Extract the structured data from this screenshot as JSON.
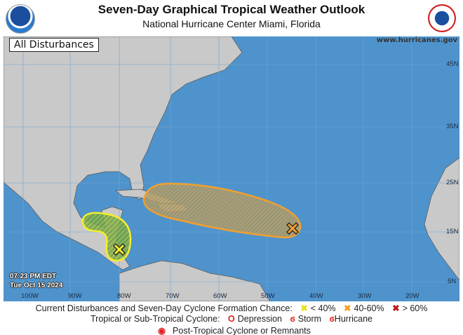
{
  "header": {
    "title": "Seven-Day Graphical Tropical Weather Outlook",
    "subtitle": "National Hurricane Center  Miami, Florida"
  },
  "logos": {
    "left": "noaa-logo",
    "left_text": "NOAA",
    "right": "national-weather-service-logo",
    "right_text": "NATIONAL WEATHER SERVICE"
  },
  "map": {
    "panel_label": "All Disturbances",
    "website": "www.hurricanes.gov",
    "time": "07:23 PM EDT",
    "date": "Tue Oct 15 2024",
    "longitude_labels": [
      "100W",
      "90W",
      "80W",
      "70W",
      "60W",
      "50W",
      "40W",
      "30W",
      "20W"
    ],
    "latitude_labels": [
      "45N",
      "35N",
      "25N",
      "15N",
      "5N"
    ],
    "colors": {
      "ocean": "#4f93cc",
      "land": "#c9c9c9",
      "low": "#f5ee2a",
      "medium": "#f0a030",
      "high": "#d01818"
    },
    "disturbances": [
      {
        "location": "western Caribbean",
        "chance_category": "< 40%",
        "color": "#f5ee2a"
      },
      {
        "location": "central tropical Atlantic",
        "chance_category": "40-60%",
        "color": "#f0a030"
      }
    ]
  },
  "legend": {
    "row1_label": "Current Disturbances and Seven-Day Cyclone Formation Chance:",
    "low": "< 40%",
    "medium": "40-60%",
    "high": "> 60%",
    "row2_label": "Tropical or Sub-Tropical Cyclone:",
    "depression": "Depression",
    "storm": "Storm",
    "hurricane": "Hurricane",
    "post_tropical": "Post-Tropical Cyclone or Remnants"
  }
}
